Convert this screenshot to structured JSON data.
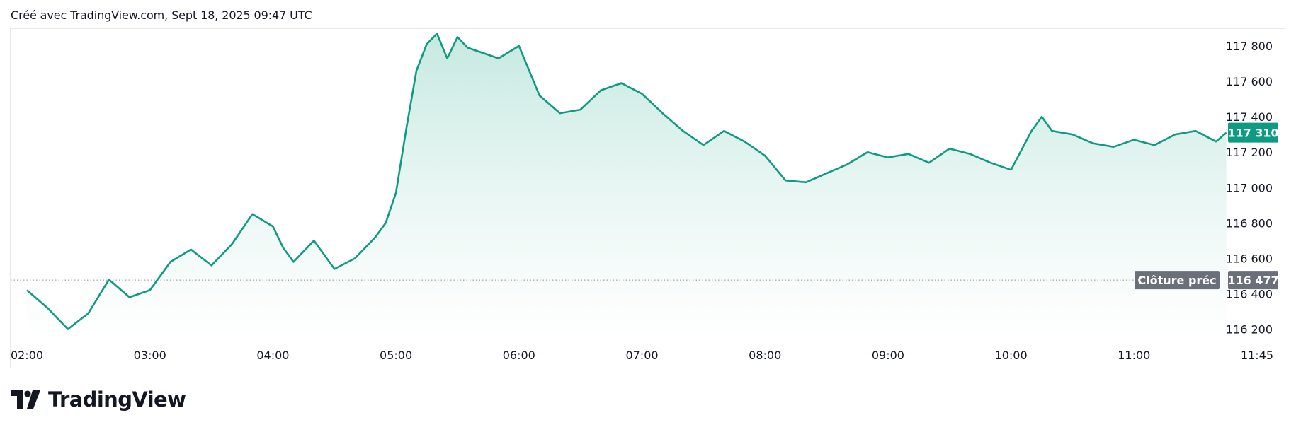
{
  "header": {
    "caption": "Créé avec TradingView.com, Sept 18, 2025 09:47 UTC"
  },
  "brand": {
    "name": "TradingView"
  },
  "colors": {
    "line": "#0e9b81",
    "fill_top": "#bfe6dd",
    "fill_bottom": "#ffffff",
    "badge": "#0e9b81",
    "prev_badge": "#6b6f7a"
  },
  "chart_data": {
    "type": "area",
    "x_ticks": [
      "02:00",
      "03:00",
      "04:00",
      "05:00",
      "06:00",
      "07:00",
      "08:00",
      "09:00",
      "10:00",
      "11:00",
      "11:45"
    ],
    "y_ticks": [
      "117 800",
      "117 600",
      "117 400",
      "117 200",
      "117 000",
      "116 800",
      "116 600",
      "116 400",
      "116 200"
    ],
    "ylim": [
      116150,
      117920
    ],
    "last_price": {
      "label": "117 310",
      "value": 117310
    },
    "prev_close": {
      "label": "Clôture préc",
      "value_label": "116 477",
      "value": 116477
    },
    "series": [
      {
        "x": [
          "02:00",
          "02:10",
          "02:20",
          "02:30",
          "02:40",
          "02:50",
          "03:00",
          "03:10",
          "03:20",
          "03:30",
          "03:40",
          "03:50",
          "04:00",
          "04:05",
          "04:10",
          "04:20",
          "04:30",
          "04:40",
          "04:50",
          "04:55",
          "05:00",
          "05:05",
          "05:10",
          "05:15",
          "05:20",
          "05:25",
          "05:30",
          "05:35",
          "05:40",
          "05:45",
          "05:50",
          "06:00",
          "06:10",
          "06:20",
          "06:30",
          "06:40",
          "06:50",
          "07:00",
          "07:10",
          "07:20",
          "07:30",
          "07:40",
          "07:50",
          "08:00",
          "08:10",
          "08:20",
          "08:30",
          "08:40",
          "08:50",
          "09:00",
          "09:10",
          "09:20",
          "09:30",
          "09:40",
          "09:50",
          "10:00",
          "10:10",
          "10:15",
          "10:20",
          "10:30",
          "10:40",
          "10:50",
          "11:00",
          "11:10",
          "11:20",
          "11:30",
          "11:40",
          "11:45"
        ],
        "y": [
          116420,
          116320,
          116200,
          116290,
          116480,
          116380,
          116420,
          116580,
          116650,
          116560,
          116680,
          116850,
          116780,
          116660,
          116580,
          116700,
          116540,
          116600,
          116720,
          116800,
          116970,
          117330,
          117660,
          117810,
          117870,
          117730,
          117850,
          117790,
          117770,
          117750,
          117730,
          117800,
          117520,
          117420,
          117440,
          117550,
          117590,
          117530,
          117420,
          117320,
          117240,
          117320,
          117260,
          117180,
          117040,
          117030,
          117080,
          117130,
          117200,
          117170,
          117190,
          117140,
          117220,
          117190,
          117140,
          117100,
          117320,
          117400,
          117320,
          117300,
          117250,
          117230,
          117270,
          117240,
          117300,
          117320,
          117260,
          117310
        ]
      }
    ]
  }
}
